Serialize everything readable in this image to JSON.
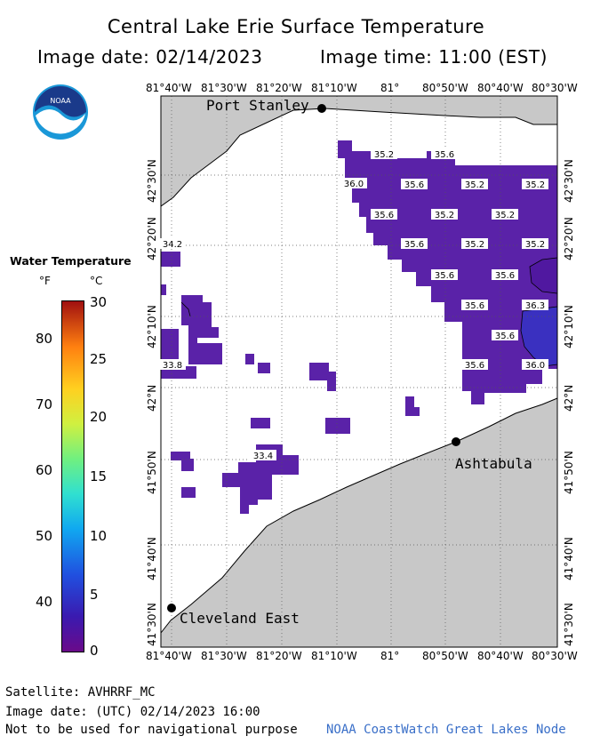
{
  "header": {
    "title": "Central Lake Erie Surface Temperature",
    "image_date": "Image date: 02/14/2023",
    "image_time": "Image time: 11:00 (EST)"
  },
  "logo": {
    "text": "NOAA",
    "icon": "noaa-logo"
  },
  "axes": {
    "top_ticks": [
      "81°40'W",
      "81°30'W",
      "81°20'W",
      "81°10'W",
      "81°",
      "80°50'W",
      "80°40'W",
      "80°30'W"
    ],
    "bottom_ticks": [
      "81°40'W",
      "81°30'W",
      "81°20'W",
      "81°10'W",
      "81°",
      "80°50'W",
      "80°40'W",
      "80°30'W"
    ],
    "left_ticks": [
      "42°30'N",
      "42°20'N",
      "42°10'N",
      "42°N",
      "41°50'N",
      "41°40'N",
      "41°30'N"
    ],
    "right_ticks": [
      "42°30'N",
      "42°20'N",
      "42°10'N",
      "42°N",
      "41°50'N",
      "41°40'N",
      "41°30'N"
    ]
  },
  "legend": {
    "title": "Water Temperature",
    "unit_f": "°F",
    "unit_c": "°C",
    "f_ticks": [
      "80",
      "70",
      "60",
      "50",
      "40"
    ],
    "c_ticks": [
      "30",
      "25",
      "20",
      "15",
      "10",
      "5",
      "0"
    ],
    "scale_colors": [
      "#6a0a8a",
      "#2050e0",
      "#30e0d0",
      "#d0f040",
      "#ff8010",
      "#a01010"
    ]
  },
  "cities": [
    {
      "name": "Port Stanley"
    },
    {
      "name": "Ashtabula"
    },
    {
      "name": "Cleveland East"
    }
  ],
  "temperature_labels": [
    "35.2",
    "35.6",
    "36.0",
    "35.6",
    "35.2",
    "35.2",
    "35.6",
    "35.2",
    "35.2",
    "35.6",
    "35.2",
    "35.2",
    "35.6",
    "35.6",
    "35.6",
    "36.3",
    "35.6",
    "35.6",
    "36.0",
    "34.2",
    "33.8",
    "33.4"
  ],
  "colors": {
    "land": "#c8c8c8",
    "water_data": "#5a22a8",
    "water_dark": "#5018a0",
    "blue_patch": "#3a30c0",
    "no_data": "#ffffff"
  },
  "footer": {
    "satellite": "Satellite: AVHRRF_MC",
    "utc_date": "Image date: (UTC) 02/14/2023  16:00",
    "disclaimer": "Not to be used for navigational purpose",
    "credit": "NOAA CoastWatch Great Lakes Node"
  }
}
